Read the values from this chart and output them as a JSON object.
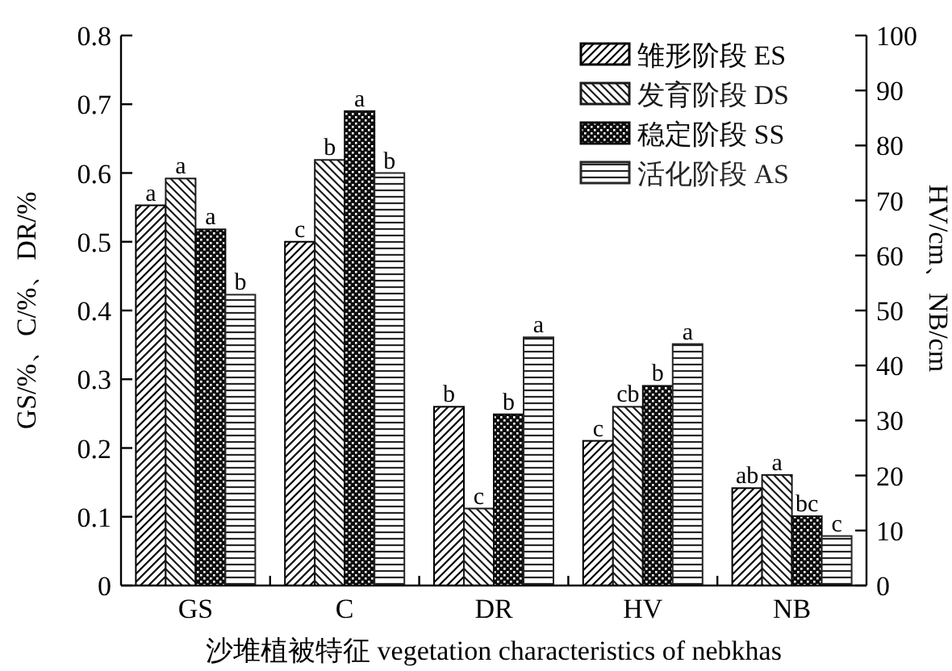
{
  "chart_data": {
    "type": "bar",
    "categories": [
      "GS",
      "C",
      "DR",
      "HV",
      "NB"
    ],
    "xlabel": "沙堆植被特征 vegetation characteristics of nebkhas",
    "ylabel": "GS/%、C/%、DR/%",
    "y2label": "HV/cm、NB/cm",
    "ylim": [
      0,
      0.8
    ],
    "yticks": [
      0,
      0.1,
      0.2,
      0.3,
      0.4,
      0.5,
      0.6,
      0.7,
      0.8
    ],
    "y2lim": [
      0,
      100
    ],
    "y2ticks": [
      0,
      10,
      20,
      30,
      40,
      50,
      60,
      70,
      80,
      90,
      100
    ],
    "legend": "top right",
    "grid": false,
    "series": [
      {
        "name": "雏形阶段 ES",
        "color": "#000000",
        "values": [
          0.553,
          0.5,
          0.26,
          null,
          null
        ],
        "value_labels": [
          "a",
          "c",
          "b",
          null,
          null
        ]
      },
      {
        "name": "发育阶段 DS",
        "color": "#1a1a1a",
        "values": [
          0.592,
          0.619,
          0.112,
          null,
          null
        ],
        "value_labels": [
          "a",
          "b",
          "c",
          null,
          null
        ]
      },
      {
        "name": "稳定阶段 SS",
        "color": "#0d0d0d",
        "values": [
          0.518,
          0.69,
          0.249,
          null,
          null
        ],
        "value_labels": [
          "a",
          "a",
          "b",
          null,
          null
        ]
      },
      {
        "name": "活化阶段 AS",
        "color": "#262626",
        "values": [
          0.423,
          0.6,
          0.361,
          null,
          null
        ],
        "value_labels": [
          "b",
          "b",
          "a",
          null,
          null
        ]
      },
      {
        "axis": "y2",
        "color": "#000000",
        "values": [
          null,
          null,
          null,
          26.3,
          17.7
        ],
        "value_labels": [
          null,
          null,
          null,
          "c",
          "ab"
        ]
      },
      {
        "axis": "y2",
        "color": "#1a1a1a",
        "values": [
          null,
          null,
          null,
          32.5,
          20.1
        ],
        "value_labels": [
          null,
          null,
          null,
          "cb",
          "a"
        ]
      },
      {
        "axis": "y2",
        "color": "#0d0d0d",
        "values": [
          null,
          null,
          null,
          36.3,
          12.6
        ],
        "value_labels": [
          null,
          null,
          null,
          "b",
          "bc"
        ]
      },
      {
        "axis": "y2",
        "color": "#262626",
        "values": [
          null,
          null,
          null,
          43.9,
          9.0
        ],
        "value_labels": [
          null,
          null,
          null,
          "a",
          "c"
        ]
      }
    ]
  }
}
